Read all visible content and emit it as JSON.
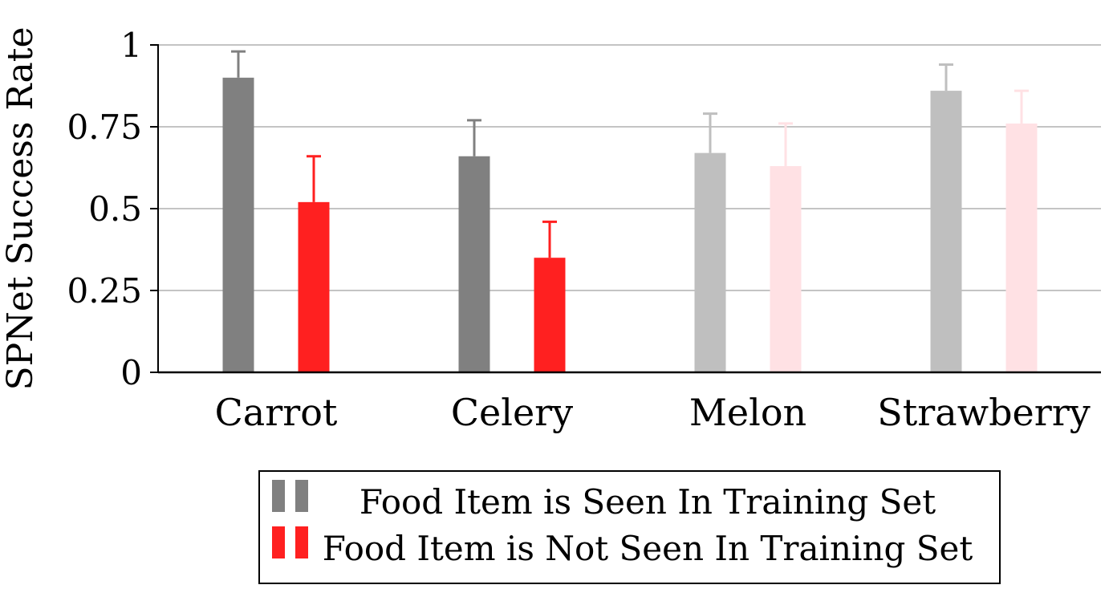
{
  "chart_data": {
    "type": "bar",
    "title": "",
    "xlabel": "",
    "ylabel": "SPNet Success Rate",
    "ylim": [
      0,
      1
    ],
    "yticks": [
      0,
      0.25,
      0.5,
      0.75,
      1
    ],
    "ytick_labels": [
      "0",
      "0.25",
      "0.5",
      "0.75",
      "1"
    ],
    "grid": true,
    "legend_position": "bottom",
    "categories": [
      "Carrot",
      "Celery",
      "Melon",
      "Strawberry"
    ],
    "series": [
      {
        "name": "Food Item is Seen In Training Set",
        "values": [
          0.9,
          0.66,
          0.67,
          0.86
        ],
        "errors": [
          0.08,
          0.11,
          0.12,
          0.08
        ],
        "colors": [
          "#808080",
          "#808080",
          "#bfbfbf",
          "#bfbfbf"
        ]
      },
      {
        "name": "Food Item is Not Seen In Training Set",
        "values": [
          0.52,
          0.35,
          0.63,
          0.76
        ],
        "errors": [
          0.14,
          0.11,
          0.13,
          0.1
        ],
        "colors": [
          "#ff2020",
          "#ff2020",
          "#ffe1e4",
          "#ffe1e4"
        ]
      }
    ],
    "legend_swatch_colors": [
      [
        "#808080",
        "#808080"
      ],
      [
        "#ff2020",
        "#ff2020"
      ]
    ]
  }
}
